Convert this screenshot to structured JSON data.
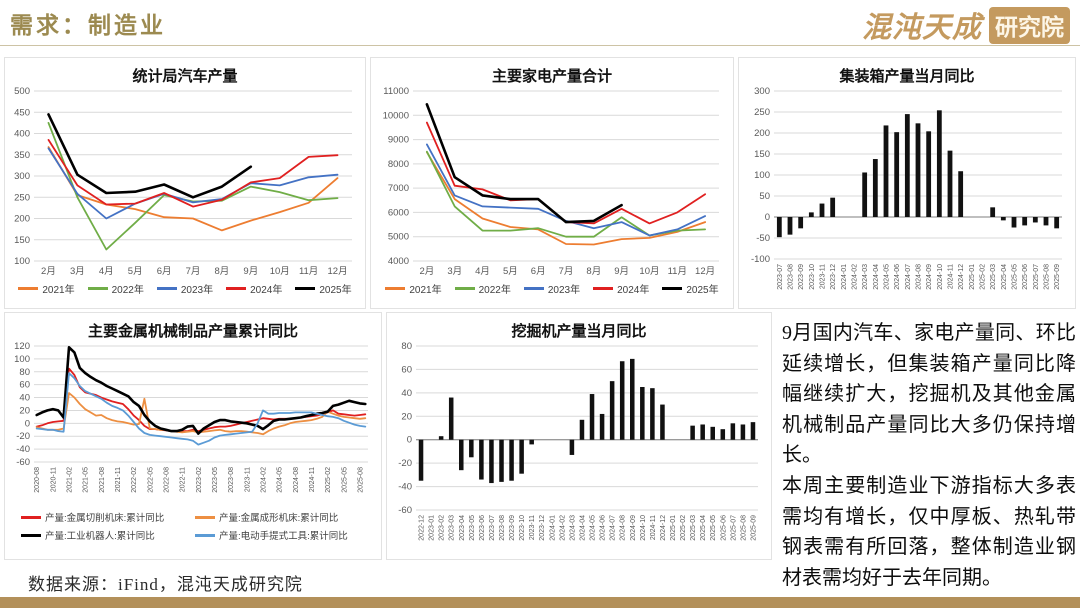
{
  "header": {
    "title": "需求：制造业",
    "logo_text": "混沌天成",
    "logo_badge": "研究院"
  },
  "commentary": {
    "paragraphs": [
      "9月国内汽车、家电产量同、环比延续增长，但集装箱产量同比降幅继续扩大，挖掘机及其他金属机械制品产量同比大多仍保持增长。",
      "本周主要制造业下游指标大多表需均有增长，仅中厚板、热轧带钢表需有所回落，整体制造业钢材表需均好于去年同期。"
    ]
  },
  "footer": {
    "source": "数据来源：iFind，混沌天成研究院"
  },
  "colors": {
    "accent_gold": "#9c8a50",
    "logo_gold": "#c49a5f",
    "bottom_bar": "#b3905a",
    "grid": "#d9d9d9",
    "tick_text": "#595959",
    "bar": "#111111"
  },
  "chart_data": [
    {
      "type": "line",
      "title": "统计局汽车产量",
      "categories": [
        "2月",
        "3月",
        "4月",
        "5月",
        "6月",
        "7月",
        "8月",
        "9月",
        "10月",
        "11月",
        "12月"
      ],
      "ylim": [
        100,
        500
      ],
      "ytick_step": 50,
      "legend_position": "bottom",
      "series": [
        {
          "name": "2021年",
          "color": "#ED7D31",
          "values": [
            368,
            255,
            233,
            222,
            203,
            200,
            172,
            195,
            215,
            237,
            295
          ]
        },
        {
          "name": "2022年",
          "color": "#70AD47",
          "values": [
            425,
            250,
            127,
            190,
            255,
            240,
            242,
            275,
            262,
            243,
            248
          ]
        },
        {
          "name": "2023年",
          "color": "#4472C4",
          "values": [
            365,
            258,
            200,
            235,
            258,
            238,
            246,
            283,
            278,
            297,
            303
          ]
        },
        {
          "name": "2024年",
          "color": "#E02020",
          "values": [
            385,
            278,
            233,
            235,
            260,
            228,
            244,
            285,
            295,
            345,
            349
          ]
        },
        {
          "name": "2025年",
          "color": "#000000",
          "values": [
            445,
            303,
            260,
            263,
            280,
            250,
            275,
            322
          ]
        }
      ]
    },
    {
      "type": "line",
      "title": "主要家电产量合计",
      "categories": [
        "2月",
        "3月",
        "4月",
        "5月",
        "6月",
        "7月",
        "8月",
        "9月",
        "10月",
        "11月",
        "12月"
      ],
      "ylim": [
        4000,
        11000
      ],
      "ytick_step": 1000,
      "legend_position": "bottom",
      "series": [
        {
          "name": "2021年",
          "color": "#ED7D31",
          "values": [
            8480,
            6550,
            5750,
            5400,
            5300,
            4700,
            4680,
            4900,
            4950,
            5200,
            5600
          ]
        },
        {
          "name": "2022年",
          "color": "#70AD47",
          "values": [
            8500,
            6250,
            5250,
            5250,
            5350,
            5000,
            5000,
            5800,
            5050,
            5250,
            5300
          ]
        },
        {
          "name": "2023年",
          "color": "#4472C4",
          "values": [
            8800,
            6700,
            6250,
            6200,
            6150,
            5650,
            5350,
            5600,
            5050,
            5300,
            5850
          ]
        },
        {
          "name": "2024年",
          "color": "#E02020",
          "values": [
            9700,
            7100,
            6950,
            6500,
            6550,
            5600,
            5550,
            6150,
            5550,
            6000,
            6750
          ]
        },
        {
          "name": "2025年",
          "color": "#000000",
          "values": [
            10450,
            7450,
            6700,
            6550,
            6550,
            5600,
            5650,
            6300
          ]
        }
      ]
    },
    {
      "type": "bar",
      "title": "集装箱产量当月同比",
      "categories": [
        "2023-07",
        "2023-08",
        "2023-09",
        "2023-10",
        "2023-11",
        "2023-12",
        "2024-01",
        "2024-02",
        "2024-03",
        "2024-04",
        "2024-05",
        "2024-06",
        "2024-07",
        "2024-08",
        "2024-09",
        "2024-10",
        "2024-11",
        "2024-12",
        "2025-01",
        "2025-02",
        "2025-03",
        "2025-04",
        "2025-05",
        "2025-06",
        "2025-07",
        "2025-08",
        "2025-09"
      ],
      "values": [
        -48,
        -42,
        -27,
        11,
        32,
        46,
        0,
        0,
        106,
        138,
        218,
        202,
        245,
        223,
        204,
        254,
        158,
        109,
        0,
        0,
        23,
        -8,
        -25,
        -20,
        -13,
        -20,
        -27
      ],
      "ylim": [
        -100,
        300
      ],
      "ytick_step": 50,
      "rotate_xlabels": true,
      "bar_color": "#111111",
      "legend_position": "none"
    },
    {
      "type": "line",
      "title": "主要金属机械制品产量累计同比",
      "categories": [
        "2020-08",
        "2020-09",
        "2020-10",
        "2020-11",
        "2020-12",
        "2021-01",
        "2021-02",
        "2021-03",
        "2021-04",
        "2021-05",
        "2021-06",
        "2021-07",
        "2021-08",
        "2021-09",
        "2021-10",
        "2021-11",
        "2021-12",
        "2022-01",
        "2022-02",
        "2022-03",
        "2022-04",
        "2022-05",
        "2022-06",
        "2022-07",
        "2022-08",
        "2022-09",
        "2022-10",
        "2022-11",
        "2022-12",
        "2023-01",
        "2023-02",
        "2023-03",
        "2023-04",
        "2023-05",
        "2023-06",
        "2023-07",
        "2023-08",
        "2023-09",
        "2023-10",
        "2023-11",
        "2023-12",
        "2024-01",
        "2024-02",
        "2024-03",
        "2024-04",
        "2024-05",
        "2024-06",
        "2024-07",
        "2024-08",
        "2024-09",
        "2024-10",
        "2024-11",
        "2024-12",
        "2025-01",
        "2025-02",
        "2025-03",
        "2025-04",
        "2025-05",
        "2025-06",
        "2025-07",
        "2025-08",
        "2025-09"
      ],
      "xtick_every": 3,
      "rotate_xlabels": true,
      "ylim": [
        -60,
        120
      ],
      "ytick_step": 20,
      "legend_position": "bottom-2col",
      "series": [
        {
          "name": "产量:金属切削机床:累计同比",
          "color": "#E02020",
          "values": [
            -5,
            -3,
            0,
            2,
            3,
            4,
            85,
            75,
            56,
            48,
            46,
            44,
            40,
            37,
            34,
            32,
            30,
            22,
            12,
            5,
            -4,
            -9,
            -9,
            -10,
            -11,
            -12,
            -12,
            -12,
            -12,
            -10,
            -12,
            -10,
            -8,
            -6,
            -5,
            -5,
            -4,
            -2,
            0,
            2,
            4,
            6,
            8,
            7,
            6,
            7,
            7,
            7,
            8,
            9,
            10,
            11,
            12,
            14,
            17,
            20,
            15,
            14,
            13,
            12,
            13,
            14
          ]
        },
        {
          "name": "产量:金属成形机床:累计同比",
          "color": "#ED8F42",
          "values": [
            -6,
            -8,
            -10,
            -10,
            -10,
            -8,
            47,
            40,
            30,
            22,
            17,
            12,
            13,
            8,
            5,
            3,
            2,
            0,
            -2,
            -1,
            38,
            -8,
            -9,
            -10,
            -10,
            -12,
            -13,
            -14,
            -13,
            -12,
            -14,
            -13,
            -12,
            -11,
            -10,
            -12,
            -13,
            -12,
            -12,
            -13,
            -14,
            -15,
            -17,
            -12,
            -8,
            -5,
            -3,
            0,
            2,
            3,
            4,
            5,
            7,
            10,
            18,
            15,
            12,
            10,
            9,
            8,
            7,
            8
          ]
        },
        {
          "name": "产量:工业机器人:累计同比",
          "color": "#000000",
          "values": [
            13,
            17,
            20,
            22,
            20,
            9,
            118,
            110,
            86,
            78,
            72,
            67,
            63,
            58,
            54,
            50,
            46,
            42,
            33,
            27,
            13,
            3,
            -4,
            -8,
            -10,
            -12,
            -12,
            -10,
            -5,
            -4,
            -16,
            -8,
            -3,
            2,
            5,
            5,
            3,
            2,
            1,
            0,
            -2,
            -4,
            -9,
            -3,
            4,
            6,
            6,
            7,
            8,
            9,
            11,
            13,
            15,
            16,
            18,
            27,
            29,
            32,
            35,
            33,
            31,
            30
          ]
        },
        {
          "name": "产量:电动手提式工具:累计同比",
          "color": "#5B9BD5",
          "values": [
            -8,
            -9,
            -10,
            -10,
            -12,
            -13,
            78,
            70,
            58,
            50,
            46,
            42,
            38,
            32,
            27,
            24,
            20,
            12,
            2,
            -8,
            -15,
            -18,
            -19,
            -20,
            -21,
            -22,
            -23,
            -24,
            -25,
            -27,
            -33,
            -30,
            -27,
            -22,
            -19,
            -18,
            -17,
            -16,
            -15,
            -14,
            -13,
            0,
            20,
            15,
            15,
            16,
            16,
            16,
            17,
            17,
            17,
            17,
            15,
            13,
            11,
            10,
            8,
            4,
            1,
            -2,
            -4,
            -5
          ]
        }
      ]
    },
    {
      "type": "bar",
      "title": "挖掘机产量当月同比",
      "categories": [
        "2022-12",
        "2023-01",
        "2023-02",
        "2023-03",
        "2023-04",
        "2023-05",
        "2023-06",
        "2023-07",
        "2023-08",
        "2023-09",
        "2023-10",
        "2023-11",
        "2023-12",
        "2024-01",
        "2024-02",
        "2024-03",
        "2024-04",
        "2024-05",
        "2024-06",
        "2024-07",
        "2024-08",
        "2024-09",
        "2024-10",
        "2024-11",
        "2024-12",
        "2025-01",
        "2025-02",
        "2025-03",
        "2025-04",
        "2025-05",
        "2025-06",
        "2025-07",
        "2025-08",
        "2025-09"
      ],
      "values": [
        -35,
        0,
        3,
        36,
        -26,
        -15,
        -34,
        -37,
        -36,
        -35,
        -29,
        -4,
        0,
        0,
        0,
        -13,
        17,
        39,
        22,
        50,
        67,
        69,
        45,
        44,
        30,
        0,
        0,
        12,
        13,
        11,
        9,
        14,
        13,
        15
      ],
      "ylim": [
        -60,
        80
      ],
      "ytick_step": 20,
      "rotate_xlabels": true,
      "bar_color": "#111111",
      "legend_position": "none"
    }
  ]
}
